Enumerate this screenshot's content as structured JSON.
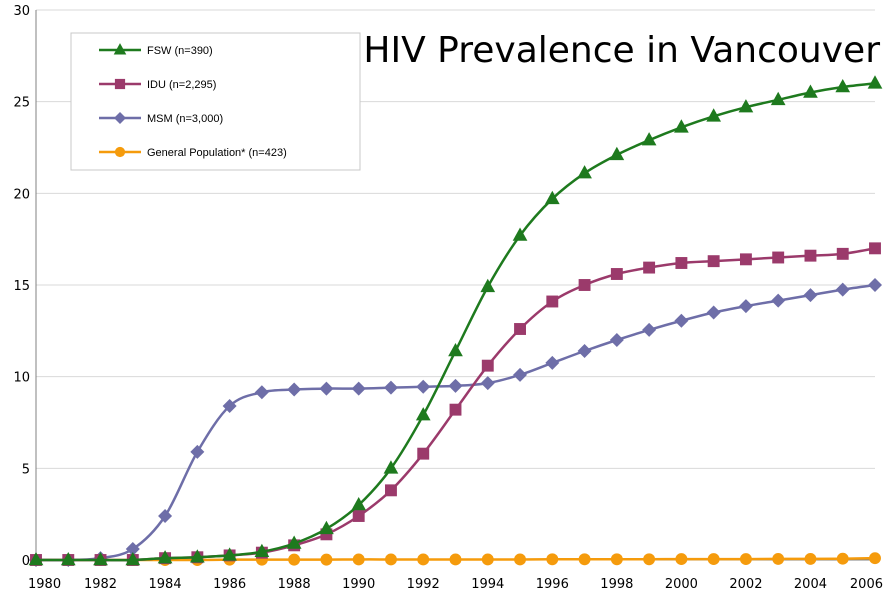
{
  "chart_data": {
    "type": "line",
    "title": "HIV Prevalence in Vancouver",
    "xlabel": "",
    "ylabel": "",
    "xlim": [
      1980,
      2006
    ],
    "ylim": [
      0,
      30
    ],
    "x_ticks": [
      "1980",
      "1982",
      "1984",
      "1986",
      "1988",
      "1990",
      "1992",
      "1994",
      "1996",
      "1998",
      "2000",
      "2002",
      "2004",
      "2006"
    ],
    "y_ticks": [
      "0",
      "5",
      "10",
      "15",
      "20",
      "25",
      "30"
    ],
    "legend_position": "top-left",
    "x": [
      1980,
      1981,
      1982,
      1983,
      1984,
      1985,
      1986,
      1987,
      1988,
      1989,
      1990,
      1991,
      1992,
      1993,
      1994,
      1995,
      1996,
      1997,
      1998,
      1999,
      2000,
      2001,
      2002,
      2003,
      2004,
      2005,
      2006
    ],
    "series": [
      {
        "name": "FSW (n=390)",
        "color": "#1e7a1e",
        "marker": "triangle",
        "values": [
          0,
          0,
          0,
          0,
          0.1,
          0.15,
          0.25,
          0.45,
          0.9,
          1.7,
          3.0,
          5.0,
          7.9,
          11.4,
          14.9,
          17.7,
          19.7,
          21.1,
          22.1,
          22.9,
          23.6,
          24.2,
          24.7,
          25.1,
          25.5,
          25.8,
          26.0
        ]
      },
      {
        "name": "IDU (n=2,295)",
        "color": "#9b3a6b",
        "marker": "square",
        "values": [
          0,
          0,
          0,
          0,
          0.1,
          0.15,
          0.25,
          0.4,
          0.8,
          1.4,
          2.4,
          3.8,
          5.8,
          8.2,
          10.6,
          12.6,
          14.1,
          15.0,
          15.6,
          15.95,
          16.2,
          16.3,
          16.4,
          16.5,
          16.6,
          16.7,
          17.0
        ]
      },
      {
        "name": "MSM (n=3,000)",
        "color": "#6e6ea8",
        "marker": "diamond",
        "values": [
          0,
          0,
          0.1,
          0.6,
          2.4,
          5.9,
          8.4,
          9.15,
          9.3,
          9.35,
          9.35,
          9.4,
          9.45,
          9.5,
          9.65,
          10.1,
          10.75,
          11.4,
          12.0,
          12.55,
          13.05,
          13.5,
          13.85,
          14.15,
          14.45,
          14.75,
          15.0
        ]
      },
      {
        "name": "General Population* (n=423)",
        "color": "#f59b0c",
        "marker": "circle",
        "values": [
          0,
          0,
          0,
          0,
          0,
          0,
          0.02,
          0.02,
          0.02,
          0.02,
          0.03,
          0.03,
          0.03,
          0.03,
          0.03,
          0.03,
          0.04,
          0.04,
          0.04,
          0.04,
          0.05,
          0.05,
          0.05,
          0.06,
          0.06,
          0.07,
          0.1
        ]
      }
    ]
  }
}
